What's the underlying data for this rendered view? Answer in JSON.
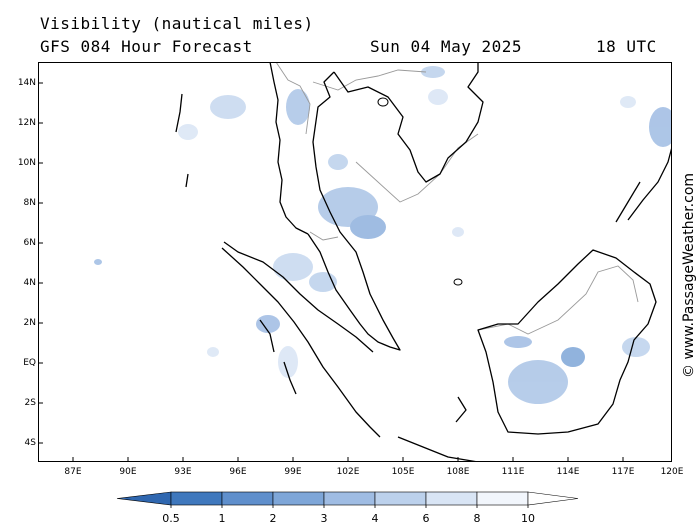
{
  "header": {
    "title": "Visibility (nautical miles)",
    "subtitle": "GFS 084 Hour Forecast",
    "date": "Sun 04 May 2025",
    "time": "18 UTC"
  },
  "map": {
    "lat_labels": [
      "14N",
      "12N",
      "10N",
      "8N",
      "6N",
      "4N",
      "2N",
      "EQ",
      "2S",
      "4S"
    ],
    "lon_labels": [
      "87E",
      "90E",
      "93E",
      "96E",
      "99E",
      "102E",
      "105E",
      "108E",
      "111E",
      "114E",
      "117E",
      "120E"
    ],
    "colors": {
      "land_outline": "#000000",
      "border": "#9a9a9a",
      "frame": "#000000"
    }
  },
  "legend": {
    "labels": [
      "0.5",
      "1",
      "2",
      "3",
      "4",
      "6",
      "8",
      "10"
    ],
    "colors": [
      "#3f78bd",
      "#5f8fcc",
      "#7ea6d8",
      "#9fbce3",
      "#bcd1ec",
      "#d9e5f5",
      "#f2f6fc"
    ]
  },
  "watermark": "© www.PassageWeather.com"
}
